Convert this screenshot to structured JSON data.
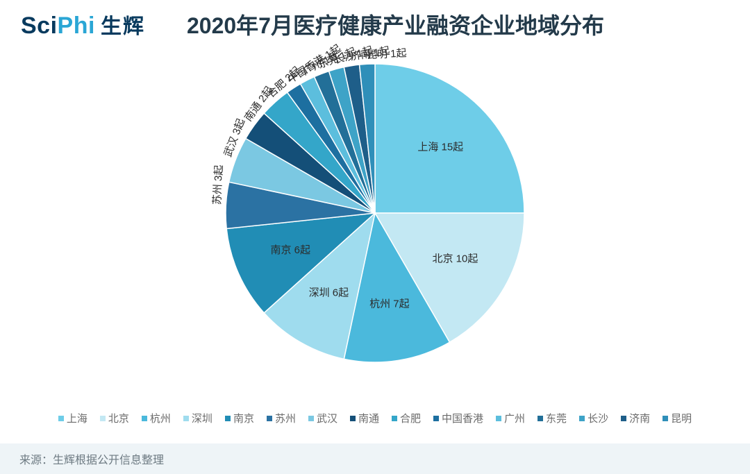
{
  "header": {
    "logo_en_prefix": "Sci",
    "logo_en_suffix": "Phi",
    "logo_cn": "生辉",
    "title": "2020年7月医疗健康产业融资企业地域分布"
  },
  "chart": {
    "type": "pie",
    "radius": 215,
    "start_angle_deg": 0,
    "background_color": "#ffffff",
    "label_fontsize": 15,
    "label_color": "#2b2b2b",
    "separator_color": "#ffffff",
    "slices": [
      {
        "name": "上海",
        "value": 15,
        "label": "上海 15起",
        "color": "#6ecde8",
        "label_rot": "radial"
      },
      {
        "name": "北京",
        "value": 10,
        "label": "北京 10起",
        "color": "#c3e8f3",
        "label_rot": "radial"
      },
      {
        "name": "杭州",
        "value": 7,
        "label": "杭州 7起",
        "color": "#4bb9dc",
        "label_rot": "radial"
      },
      {
        "name": "深圳",
        "value": 6,
        "label": "深圳 6起",
        "color": "#9fdcee",
        "label_rot": "radial"
      },
      {
        "name": "南京",
        "value": 6,
        "label": "南京 6起",
        "color": "#218db5",
        "label_rot": "radial"
      },
      {
        "name": "苏州",
        "value": 3,
        "label": "苏州 3起",
        "color": "#2b72a3",
        "label_rot": "tangent"
      },
      {
        "name": "武汉",
        "value": 3,
        "label": "武汉 3起",
        "color": "#7bc8e2",
        "label_rot": "tangent"
      },
      {
        "name": "南通",
        "value": 2,
        "label": "南通 2起",
        "color": "#144f78",
        "label_rot": "tangent"
      },
      {
        "name": "合肥",
        "value": 2,
        "label": "合肥 2起",
        "color": "#34a6c9",
        "label_rot": "tangent"
      },
      {
        "name": "中国香港",
        "value": 1,
        "label": "中国香港 1起",
        "color": "#1d6fa0",
        "label_rot": "tangent"
      },
      {
        "name": "广州",
        "value": 1,
        "label": "广州 1起",
        "color": "#5cbedd",
        "label_rot": "tangent"
      },
      {
        "name": "东莞",
        "value": 1,
        "label": "东莞 1起",
        "color": "#226f98",
        "label_rot": "tangent"
      },
      {
        "name": "长沙",
        "value": 1,
        "label": "长沙 1起",
        "color": "#3ea3c7",
        "label_rot": "tangent"
      },
      {
        "name": "济南",
        "value": 1,
        "label": "济南 1起",
        "color": "#1e5e89",
        "label_rot": "tangent"
      },
      {
        "name": "昆明",
        "value": 1,
        "label": "昆明 1起",
        "color": "#2f8fb9",
        "label_rot": "tangent"
      }
    ]
  },
  "legend": {
    "fontsize": 15,
    "text_color": "#6b6b6b"
  },
  "footer": {
    "source_label": "来源：",
    "source_text": "生辉根据公开信息整理",
    "background_color": "#eef4f7"
  }
}
